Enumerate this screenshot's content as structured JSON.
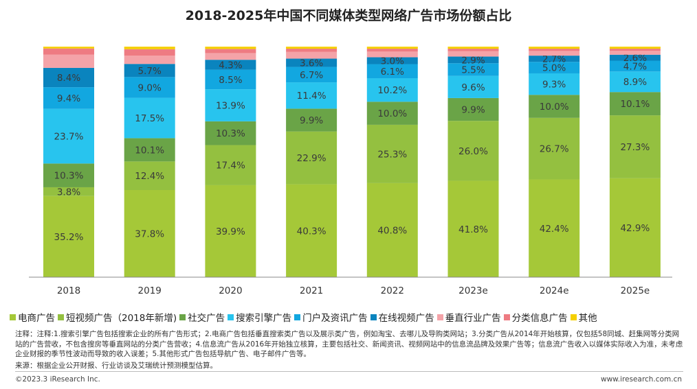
{
  "chart_data": {
    "type": "bar",
    "stacked": true,
    "title": "2018-2025年中国不同媒体类型网络广告市场份额占比",
    "categories": [
      "2018",
      "2019",
      "2020",
      "2021",
      "2022",
      "2023e",
      "2024e",
      "2025e"
    ],
    "ylim": [
      0,
      100
    ],
    "legend_position": "bottom",
    "series": [
      {
        "name": "电商广告",
        "color": "#a5c838",
        "values": [
          35.2,
          37.8,
          39.9,
          40.3,
          40.8,
          41.8,
          42.4,
          42.9
        ],
        "labels": [
          "35.2%",
          "37.8%",
          "39.9%",
          "40.3%",
          "40.8%",
          "41.8%",
          "42.4%",
          "42.9%"
        ]
      },
      {
        "name": "短视频广告（2018年新增)",
        "color": "#94c040",
        "values": [
          3.8,
          12.4,
          17.4,
          22.9,
          25.3,
          26.0,
          26.7,
          27.3
        ],
        "labels": [
          "3.8%",
          "12.4%",
          "17.4%",
          "22.9%",
          "25.3%",
          "26.0%",
          "26.7%",
          "27.3%"
        ]
      },
      {
        "name": "社交广告",
        "color": "#6aa447",
        "values": [
          10.3,
          10.1,
          10.3,
          9.9,
          10.0,
          9.9,
          10.0,
          10.1
        ],
        "labels": [
          "10.3%",
          "10.1%",
          "10.3%",
          "9.9%",
          "10.0%",
          "9.9%",
          "10.0%",
          "10.1%"
        ]
      },
      {
        "name": "搜索引擎广告",
        "color": "#28c4ee",
        "values": [
          23.7,
          17.5,
          13.9,
          11.4,
          10.2,
          9.6,
          9.3,
          8.9
        ],
        "labels": [
          "23.7%",
          "17.5%",
          "13.9%",
          "11.4%",
          "10.2%",
          "9.6%",
          "9.3%",
          "8.9%"
        ]
      },
      {
        "name": "门户及资讯广告",
        "color": "#12a7e0",
        "values": [
          9.4,
          9.0,
          8.5,
          6.7,
          6.1,
          5.5,
          5.0,
          4.7
        ],
        "labels": [
          "9.4%",
          "9.0%",
          "8.5%",
          "6.7%",
          "6.1%",
          "5.5%",
          "5.0%",
          "4.7%"
        ]
      },
      {
        "name": "在线视频广告",
        "color": "#0a84be",
        "values": [
          8.4,
          5.7,
          4.3,
          3.6,
          3.0,
          2.9,
          2.7,
          2.6
        ],
        "labels": [
          "8.4%",
          "5.7%",
          "4.3%",
          "3.6%",
          "3.0%",
          "2.9%",
          "2.7%",
          "2.6%"
        ]
      },
      {
        "name": "垂直行业广告",
        "color": "#f4a3a8",
        "values": [
          5.7,
          3.6,
          2.9,
          2.9,
          2.5,
          2.3,
          2.0,
          1.7
        ]
      },
      {
        "name": "分类信息广告",
        "color": "#ee7b82",
        "values": [
          2.7,
          2.8,
          1.8,
          1.4,
          1.2,
          1.1,
          1.0,
          0.9
        ]
      },
      {
        "name": "其他",
        "color": "#f5d000",
        "values": [
          0.8,
          1.1,
          1.0,
          0.9,
          0.9,
          0.9,
          0.9,
          0.9
        ]
      }
    ]
  },
  "legend": [
    {
      "label": "电商广告",
      "color": "#a5c838"
    },
    {
      "label": "短视频广告（2018年新增)",
      "color": "#94c040"
    },
    {
      "label": "社交广告",
      "color": "#6aa447"
    },
    {
      "label": "搜索引擎广告",
      "color": "#28c4ee"
    },
    {
      "label": "门户及资讯广告",
      "color": "#12a7e0"
    },
    {
      "label": "在线视频广告",
      "color": "#0a84be"
    },
    {
      "label": "垂直行业广告",
      "color": "#f4a3a8"
    },
    {
      "label": "分类信息广告",
      "color": "#ee7b82"
    },
    {
      "label": "其他",
      "color": "#f5d000"
    }
  ],
  "notes": "注释：注释:1.搜索引擎广告包括搜索企业的所有广告形式；2.电商广告包括垂直搜索类广告以及展示类广告，例如淘宝、去哪儿及导购类网站；3.分类广告从2014年开始核算，仅包括58同城、赶集网等分类网站的广告营收，不包含搜房等垂直网站的分类广告营收；4.信息流广告从2016年开始独立核算，主要包括社交、新闻资讯、视频网站中的信息流品牌及效果广告等；信息流广告收入以媒体实际收入为准，未考虑企业财报的季节性波动而导致的收入误差；5.其他形式广告包括导航广告、电子邮件广告等。",
  "source": "来源：根据企业公开财报、行业访谈及艾瑞统计预测模型估算。",
  "copyright": "©2023.3 iResearch Inc.",
  "website": "www.iresearch.com.cn"
}
